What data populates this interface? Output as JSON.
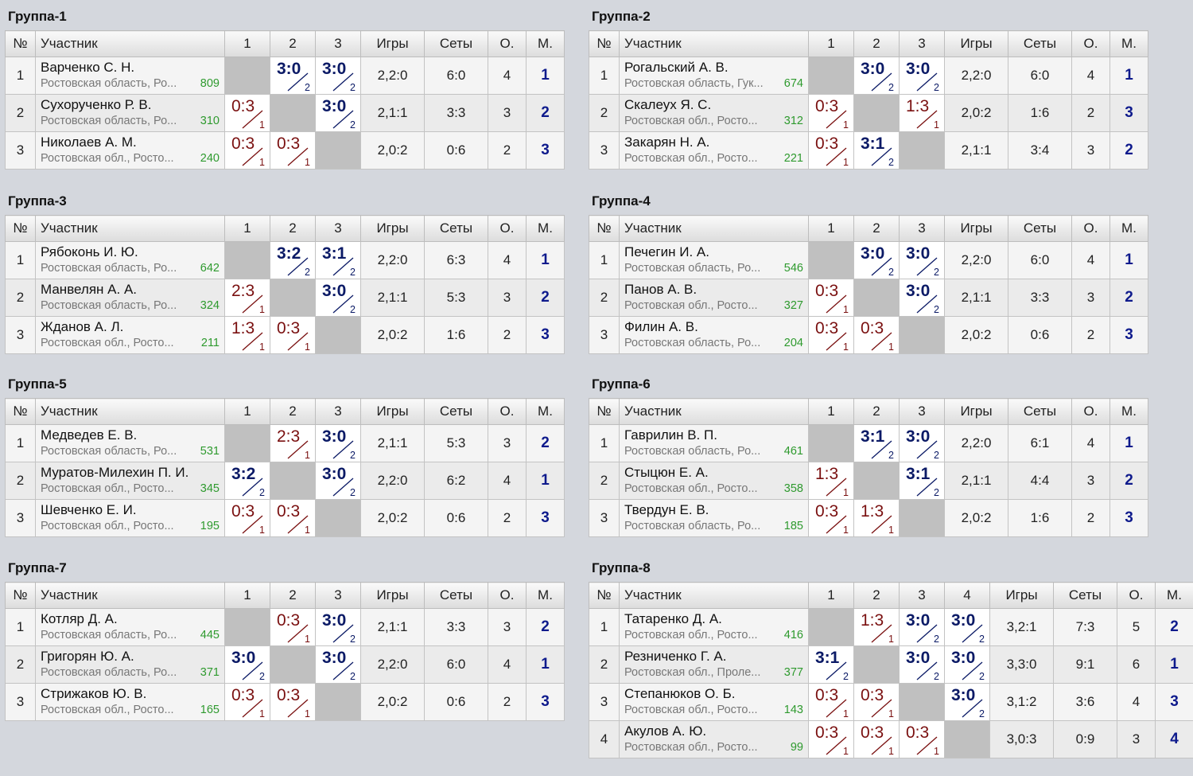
{
  "headers": {
    "num": "№",
    "name": "Участник",
    "games": "Игры",
    "sets": "Сеты",
    "points": "О.",
    "place": "М."
  },
  "groups": [
    {
      "title": "Группа-1",
      "cols": [
        "1",
        "2",
        "3"
      ],
      "rows": [
        {
          "n": "1",
          "name": "Варченко С. Н.",
          "region": "Ростовская область, Ро...",
          "rating": "809",
          "results": [
            null,
            {
              "s": "3:0",
              "p": "2",
              "w": true
            },
            {
              "s": "3:0",
              "p": "2",
              "w": true
            }
          ],
          "games": "2,2:0",
          "sets": "6:0",
          "points": "4",
          "place": "1"
        },
        {
          "n": "2",
          "name": "Сухорученко Р. В.",
          "region": "Ростовская область, Ро...",
          "rating": "310",
          "results": [
            {
              "s": "0:3",
              "p": "1",
              "w": false
            },
            null,
            {
              "s": "3:0",
              "p": "2",
              "w": true
            }
          ],
          "games": "2,1:1",
          "sets": "3:3",
          "points": "3",
          "place": "2"
        },
        {
          "n": "3",
          "name": "Николаев А. М.",
          "region": "Ростовская обл., Росто...",
          "rating": "240",
          "results": [
            {
              "s": "0:3",
              "p": "1",
              "w": false
            },
            {
              "s": "0:3",
              "p": "1",
              "w": false
            },
            null
          ],
          "games": "2,0:2",
          "sets": "0:6",
          "points": "2",
          "place": "3"
        }
      ]
    },
    {
      "title": "Группа-2",
      "cols": [
        "1",
        "2",
        "3"
      ],
      "rows": [
        {
          "n": "1",
          "name": "Рогальский А. В.",
          "region": "Ростовская область, Гук...",
          "rating": "674",
          "results": [
            null,
            {
              "s": "3:0",
              "p": "2",
              "w": true
            },
            {
              "s": "3:0",
              "p": "2",
              "w": true
            }
          ],
          "games": "2,2:0",
          "sets": "6:0",
          "points": "4",
          "place": "1"
        },
        {
          "n": "2",
          "name": "Скалеух Я. С.",
          "region": "Ростовская обл., Росто...",
          "rating": "312",
          "results": [
            {
              "s": "0:3",
              "p": "1",
              "w": false
            },
            null,
            {
              "s": "1:3",
              "p": "1",
              "w": false
            }
          ],
          "games": "2,0:2",
          "sets": "1:6",
          "points": "2",
          "place": "3"
        },
        {
          "n": "3",
          "name": "Закарян Н. А.",
          "region": "Ростовская обл., Росто...",
          "rating": "221",
          "results": [
            {
              "s": "0:3",
              "p": "1",
              "w": false
            },
            {
              "s": "3:1",
              "p": "2",
              "w": true
            },
            null
          ],
          "games": "2,1:1",
          "sets": "3:4",
          "points": "3",
          "place": "2"
        }
      ]
    },
    {
      "title": "Группа-3",
      "cols": [
        "1",
        "2",
        "3"
      ],
      "rows": [
        {
          "n": "1",
          "name": "Рябоконь И. Ю.",
          "region": "Ростовская область, Ро...",
          "rating": "642",
          "results": [
            null,
            {
              "s": "3:2",
              "p": "2",
              "w": true
            },
            {
              "s": "3:1",
              "p": "2",
              "w": true
            }
          ],
          "games": "2,2:0",
          "sets": "6:3",
          "points": "4",
          "place": "1"
        },
        {
          "n": "2",
          "name": "Манвелян А. А.",
          "region": "Ростовская область, Ро...",
          "rating": "324",
          "results": [
            {
              "s": "2:3",
              "p": "1",
              "w": false
            },
            null,
            {
              "s": "3:0",
              "p": "2",
              "w": true
            }
          ],
          "games": "2,1:1",
          "sets": "5:3",
          "points": "3",
          "place": "2"
        },
        {
          "n": "3",
          "name": "Жданов А. Л.",
          "region": "Ростовская обл., Росто...",
          "rating": "211",
          "results": [
            {
              "s": "1:3",
              "p": "1",
              "w": false
            },
            {
              "s": "0:3",
              "p": "1",
              "w": false
            },
            null
          ],
          "games": "2,0:2",
          "sets": "1:6",
          "points": "2",
          "place": "3"
        }
      ]
    },
    {
      "title": "Группа-4",
      "cols": [
        "1",
        "2",
        "3"
      ],
      "rows": [
        {
          "n": "1",
          "name": "Печегин И. А.",
          "region": "Ростовская область, Ро...",
          "rating": "546",
          "results": [
            null,
            {
              "s": "3:0",
              "p": "2",
              "w": true
            },
            {
              "s": "3:0",
              "p": "2",
              "w": true
            }
          ],
          "games": "2,2:0",
          "sets": "6:0",
          "points": "4",
          "place": "1"
        },
        {
          "n": "2",
          "name": "Панов А. В.",
          "region": "Ростовская обл., Росто...",
          "rating": "327",
          "results": [
            {
              "s": "0:3",
              "p": "1",
              "w": false
            },
            null,
            {
              "s": "3:0",
              "p": "2",
              "w": true
            }
          ],
          "games": "2,1:1",
          "sets": "3:3",
          "points": "3",
          "place": "2"
        },
        {
          "n": "3",
          "name": "Филин А. В.",
          "region": "Ростовская область, Ро...",
          "rating": "204",
          "results": [
            {
              "s": "0:3",
              "p": "1",
              "w": false
            },
            {
              "s": "0:3",
              "p": "1",
              "w": false
            },
            null
          ],
          "games": "2,0:2",
          "sets": "0:6",
          "points": "2",
          "place": "3"
        }
      ]
    },
    {
      "title": "Группа-5",
      "cols": [
        "1",
        "2",
        "3"
      ],
      "rows": [
        {
          "n": "1",
          "name": "Медведев Е. В.",
          "region": "Ростовская область, Ро...",
          "rating": "531",
          "results": [
            null,
            {
              "s": "2:3",
              "p": "1",
              "w": false
            },
            {
              "s": "3:0",
              "p": "2",
              "w": true
            }
          ],
          "games": "2,1:1",
          "sets": "5:3",
          "points": "3",
          "place": "2"
        },
        {
          "n": "2",
          "name": "Муратов-Милехин П. И.",
          "region": "Ростовская обл., Росто...",
          "rating": "345",
          "results": [
            {
              "s": "3:2",
              "p": "2",
              "w": true
            },
            null,
            {
              "s": "3:0",
              "p": "2",
              "w": true
            }
          ],
          "games": "2,2:0",
          "sets": "6:2",
          "points": "4",
          "place": "1"
        },
        {
          "n": "3",
          "name": "Шевченко Е. И.",
          "region": "Ростовская обл., Росто...",
          "rating": "195",
          "results": [
            {
              "s": "0:3",
              "p": "1",
              "w": false
            },
            {
              "s": "0:3",
              "p": "1",
              "w": false
            },
            null
          ],
          "games": "2,0:2",
          "sets": "0:6",
          "points": "2",
          "place": "3"
        }
      ]
    },
    {
      "title": "Группа-6",
      "cols": [
        "1",
        "2",
        "3"
      ],
      "rows": [
        {
          "n": "1",
          "name": "Гаврилин В. П.",
          "region": "Ростовская область, Ро...",
          "rating": "461",
          "results": [
            null,
            {
              "s": "3:1",
              "p": "2",
              "w": true
            },
            {
              "s": "3:0",
              "p": "2",
              "w": true
            }
          ],
          "games": "2,2:0",
          "sets": "6:1",
          "points": "4",
          "place": "1"
        },
        {
          "n": "2",
          "name": "Стыцюн Е. А.",
          "region": "Ростовская обл., Росто...",
          "rating": "358",
          "results": [
            {
              "s": "1:3",
              "p": "1",
              "w": false
            },
            null,
            {
              "s": "3:1",
              "p": "2",
              "w": true
            }
          ],
          "games": "2,1:1",
          "sets": "4:4",
          "points": "3",
          "place": "2"
        },
        {
          "n": "3",
          "name": "Твердун Е. В.",
          "region": "Ростовская область, Ро...",
          "rating": "185",
          "results": [
            {
              "s": "0:3",
              "p": "1",
              "w": false
            },
            {
              "s": "1:3",
              "p": "1",
              "w": false
            },
            null
          ],
          "games": "2,0:2",
          "sets": "1:6",
          "points": "2",
          "place": "3"
        }
      ]
    },
    {
      "title": "Группа-7",
      "cols": [
        "1",
        "2",
        "3"
      ],
      "rows": [
        {
          "n": "1",
          "name": "Котляр Д. А.",
          "region": "Ростовская область, Ро...",
          "rating": "445",
          "results": [
            null,
            {
              "s": "0:3",
              "p": "1",
              "w": false
            },
            {
              "s": "3:0",
              "p": "2",
              "w": true
            }
          ],
          "games": "2,1:1",
          "sets": "3:3",
          "points": "3",
          "place": "2"
        },
        {
          "n": "2",
          "name": "Григорян Ю. А.",
          "region": "Ростовская область, Ро...",
          "rating": "371",
          "results": [
            {
              "s": "3:0",
              "p": "2",
              "w": true
            },
            null,
            {
              "s": "3:0",
              "p": "2",
              "w": true
            }
          ],
          "games": "2,2:0",
          "sets": "6:0",
          "points": "4",
          "place": "1"
        },
        {
          "n": "3",
          "name": "Стрижаков Ю. В.",
          "region": "Ростовская обл., Росто...",
          "rating": "165",
          "results": [
            {
              "s": "0:3",
              "p": "1",
              "w": false
            },
            {
              "s": "0:3",
              "p": "1",
              "w": false
            },
            null
          ],
          "games": "2,0:2",
          "sets": "0:6",
          "points": "2",
          "place": "3"
        }
      ]
    },
    {
      "title": "Группа-8",
      "cols": [
        "1",
        "2",
        "3",
        "4"
      ],
      "rows": [
        {
          "n": "1",
          "name": "Татаренко Д. А.",
          "region": "Ростовская обл., Росто...",
          "rating": "416",
          "results": [
            null,
            {
              "s": "1:3",
              "p": "1",
              "w": false
            },
            {
              "s": "3:0",
              "p": "2",
              "w": true
            },
            {
              "s": "3:0",
              "p": "2",
              "w": true
            }
          ],
          "games": "3,2:1",
          "sets": "7:3",
          "points": "5",
          "place": "2"
        },
        {
          "n": "2",
          "name": "Резниченко Г. А.",
          "region": "Ростовская обл., Проле...",
          "rating": "377",
          "results": [
            {
              "s": "3:1",
              "p": "2",
              "w": true
            },
            null,
            {
              "s": "3:0",
              "p": "2",
              "w": true
            },
            {
              "s": "3:0",
              "p": "2",
              "w": true
            }
          ],
          "games": "3,3:0",
          "sets": "9:1",
          "points": "6",
          "place": "1"
        },
        {
          "n": "3",
          "name": "Степанюков О. Б.",
          "region": "Ростовская обл., Росто...",
          "rating": "143",
          "results": [
            {
              "s": "0:3",
              "p": "1",
              "w": false
            },
            {
              "s": "0:3",
              "p": "1",
              "w": false
            },
            null,
            {
              "s": "3:0",
              "p": "2",
              "w": true
            }
          ],
          "games": "3,1:2",
          "sets": "3:6",
          "points": "4",
          "place": "3"
        },
        {
          "n": "4",
          "name": "Акулов А. Ю.",
          "region": "Ростовская обл., Росто...",
          "rating": "99",
          "results": [
            {
              "s": "0:3",
              "p": "1",
              "w": false
            },
            {
              "s": "0:3",
              "p": "1",
              "w": false
            },
            {
              "s": "0:3",
              "p": "1",
              "w": false
            },
            null
          ],
          "games": "3,0:3",
          "sets": "0:9",
          "points": "3",
          "place": "4"
        }
      ]
    }
  ]
}
